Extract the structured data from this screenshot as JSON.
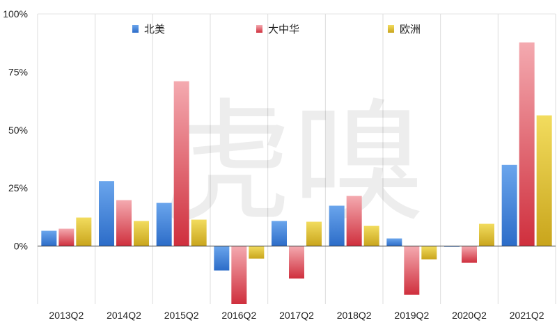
{
  "watermark": "虎嗅",
  "chart_data": {
    "type": "bar",
    "title": "",
    "xlabel": "",
    "ylabel": "",
    "ylim": [
      -25,
      100
    ],
    "yticks": [
      "0%",
      "25%",
      "50%",
      "75%",
      "100%"
    ],
    "ytick_values": [
      0,
      25,
      50,
      75,
      100
    ],
    "grid": "vertical category separators",
    "legend_position": "top",
    "categories": [
      "2013Q2",
      "2014Q2",
      "2015Q2",
      "2016Q2",
      "2017Q2",
      "2018Q2",
      "2019Q2",
      "2020Q2",
      "2021Q2"
    ],
    "series": [
      {
        "name": "北美",
        "color": "#3d7fd6",
        "values": [
          6.6,
          28.0,
          18.6,
          -10.5,
          10.8,
          17.4,
          3.3,
          -0.3,
          35.0
        ]
      },
      {
        "name": "大中华",
        "color": "#d9424f",
        "values": [
          7.5,
          19.8,
          71.0,
          -25.0,
          -14.0,
          21.6,
          -21.0,
          -7.2,
          87.7
        ]
      },
      {
        "name": "欧洲",
        "color": "#e0bf2a",
        "values": [
          12.3,
          10.8,
          11.4,
          -5.4,
          10.5,
          8.7,
          -5.7,
          9.6,
          56.3
        ]
      }
    ]
  }
}
